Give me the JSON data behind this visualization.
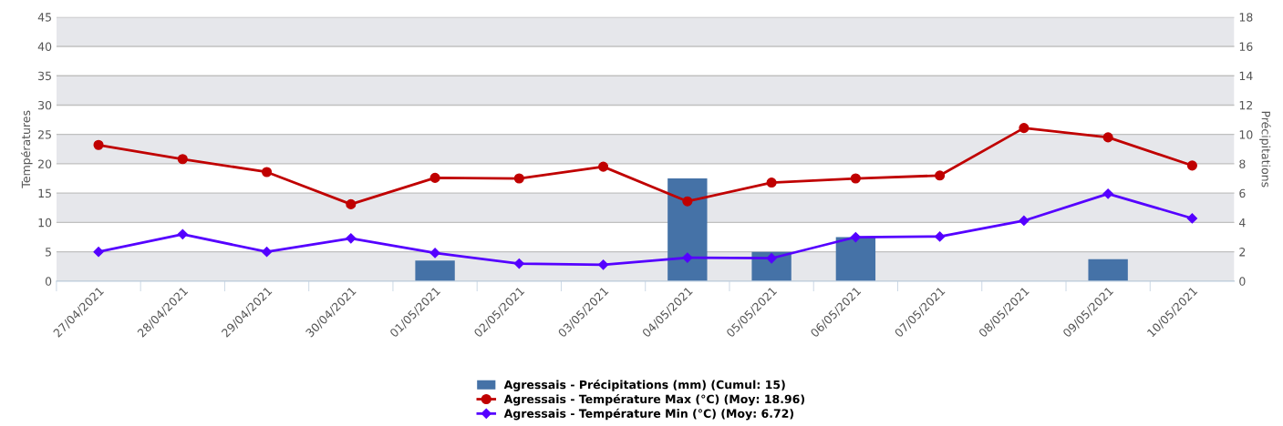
{
  "chart_data": {
    "type": "line",
    "categories": [
      "27/04/2021",
      "28/04/2021",
      "29/04/2021",
      "30/04/2021",
      "01/05/2021",
      "02/05/2021",
      "03/05/2021",
      "04/05/2021",
      "05/05/2021",
      "06/05/2021",
      "07/05/2021",
      "08/05/2021",
      "09/05/2021",
      "10/05/2021"
    ],
    "series": [
      {
        "name": "Agressais - Précipitations (mm) (Cumul: 15)",
        "type": "bar",
        "axis": "y2",
        "color": "#4572a7",
        "values": [
          0,
          0,
          0,
          0,
          1.4,
          0,
          0,
          7.0,
          2.0,
          3.0,
          0,
          0,
          1.5,
          0
        ]
      },
      {
        "name": "Agressais - Température Max (°C) (Moy: 18.96)",
        "marker": "circle",
        "color": "#c00000",
        "values": [
          23.2,
          20.8,
          18.6,
          13.1,
          17.6,
          17.5,
          19.5,
          13.6,
          16.8,
          17.5,
          18.0,
          26.1,
          24.5,
          19.7
        ]
      },
      {
        "name": "Agressais - Température Min (°C) (Moy: 6.72)",
        "marker": "diamond",
        "color": "#5500ff",
        "values": [
          5.0,
          8.0,
          5.0,
          7.3,
          4.8,
          3.0,
          2.8,
          4.0,
          3.9,
          7.5,
          7.6,
          10.3,
          14.9,
          10.7
        ]
      }
    ],
    "ylabel": "Températures",
    "y2label": "Précipitations",
    "ylim": [
      0,
      45
    ],
    "yticks": [
      0,
      5,
      10,
      15,
      20,
      25,
      30,
      35,
      40,
      45
    ],
    "y2lim": [
      0,
      18
    ],
    "y2ticks": [
      0,
      2,
      4,
      6,
      8,
      10,
      12,
      14,
      16,
      18
    ],
    "bands": [
      {
        "axis": "y",
        "from": 0,
        "to": 5,
        "color": "#e6e7eb"
      },
      {
        "axis": "y",
        "from": 10,
        "to": 15,
        "color": "#e6e7eb"
      },
      {
        "axis": "y",
        "from": 20,
        "to": 25,
        "color": "#e6e7eb"
      },
      {
        "axis": "y",
        "from": 30,
        "to": 35,
        "color": "#e6e7eb"
      },
      {
        "axis": "y",
        "from": 40,
        "to": 45,
        "color": "#e6e7eb"
      }
    ],
    "grid": "y",
    "legend": "bottom"
  }
}
